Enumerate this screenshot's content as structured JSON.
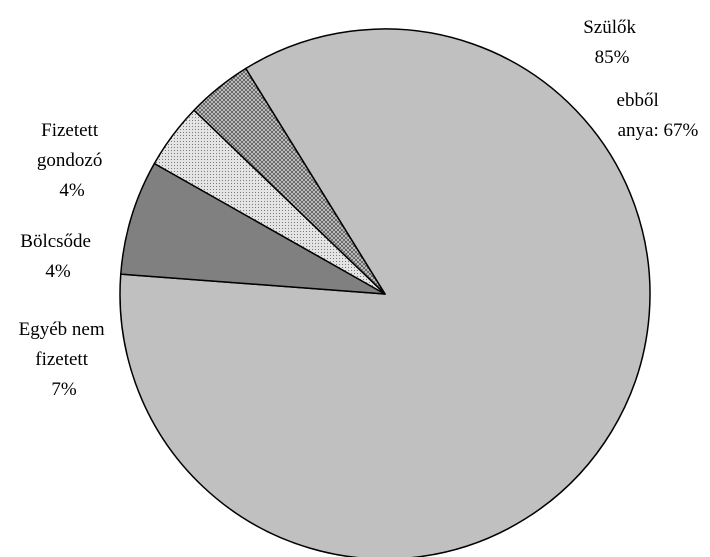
{
  "chart_data": {
    "type": "pie",
    "slices": [
      {
        "label_lines": [
          "Szülők",
          "85%"
        ],
        "value": 85,
        "color": "#c0c0c0",
        "pattern": "solid"
      },
      {
        "label_lines": [
          "Egyéb nem",
          "fizetett",
          "7%"
        ],
        "value": 7,
        "color": "#808080",
        "pattern": "solid"
      },
      {
        "label_lines": [
          "Bölcsőde",
          "4%"
        ],
        "value": 4,
        "color": "#d6d6d6",
        "pattern": "fine-dots"
      },
      {
        "label_lines": [
          "Fizetett",
          "gondozó",
          "4%"
        ],
        "value": 4,
        "color": "#b0b0b0",
        "pattern": "crosshatch"
      }
    ],
    "annotation_lines": [
      "ebből",
      "anya: 67%"
    ],
    "legend": "none"
  }
}
